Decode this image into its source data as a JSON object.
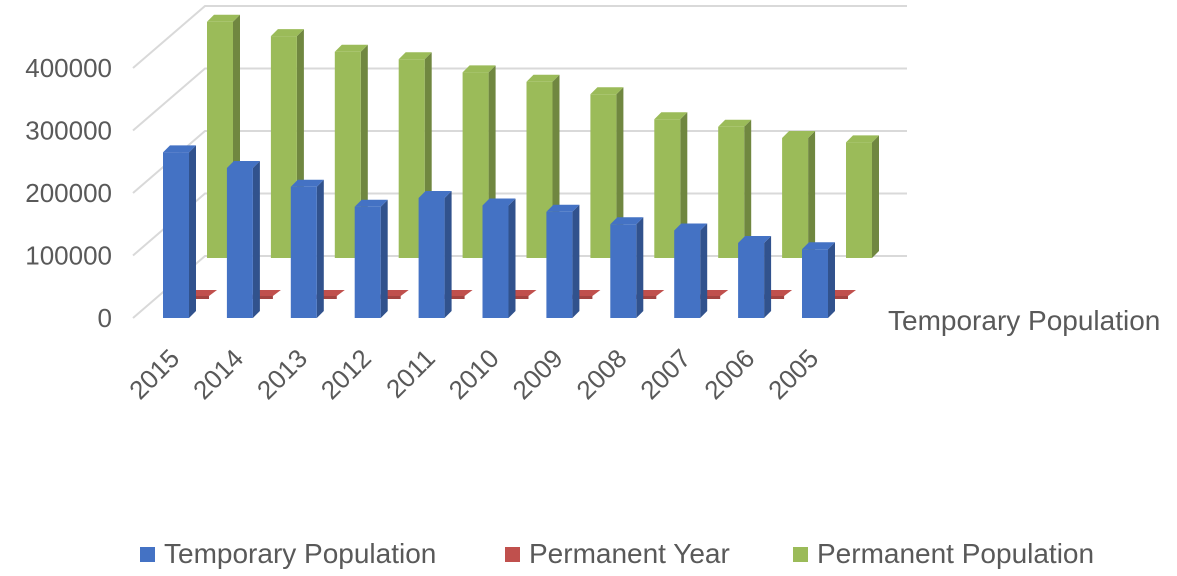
{
  "chart_data": {
    "type": "bar",
    "subtype": "3d-clustered-depth",
    "title": "",
    "xlabel": "",
    "ylabel": "",
    "ylim": [
      0,
      400000
    ],
    "yticks": [
      "0",
      "100000",
      "200000",
      "300000",
      "400000"
    ],
    "categories": [
      "2015",
      "2014",
      "2013",
      "2012",
      "2011",
      "2010",
      "2009",
      "2008",
      "2007",
      "2006",
      "2005"
    ],
    "depth_label": "Temporary Population",
    "series": [
      {
        "name": "Temporary Population",
        "color": "#4472c4",
        "values": [
          265000,
          240000,
          210000,
          178000,
          192000,
          180000,
          170000,
          150000,
          140000,
          120000,
          110000
        ]
      },
      {
        "name": "Permanent Year",
        "color": "#c0504d",
        "values": [
          2015,
          2014,
          2013,
          2012,
          2011,
          2010,
          2009,
          2008,
          2007,
          2006,
          2005
        ]
      },
      {
        "name": "Permanent Population",
        "color": "#9bbb59",
        "values": [
          378000,
          355000,
          330000,
          318000,
          297000,
          282000,
          262000,
          222000,
          210000,
          192000,
          185000
        ]
      }
    ],
    "grid": true,
    "legend_position": "bottom"
  },
  "legend": [
    {
      "label": "Temporary Population",
      "color": "#4472c4"
    },
    {
      "label": "Permanent Year",
      "color": "#c0504d"
    },
    {
      "label": "Permanent Population",
      "color": "#9bbb59"
    }
  ]
}
